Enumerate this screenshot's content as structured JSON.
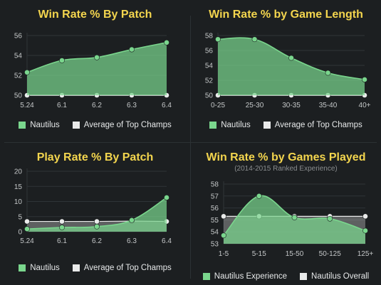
{
  "colors": {
    "background": "#1c1f21",
    "title": "#f3d54e",
    "series_primary": "#7ad68d",
    "series_secondary": "#e9eaea",
    "axis_text": "#c4c7c8",
    "grid": "#2f3438"
  },
  "chart_data": [
    {
      "type": "area",
      "title": "Win Rate % By Patch",
      "categories": [
        "5.24",
        "6.1",
        "6.2",
        "6.3",
        "6.4"
      ],
      "ylim": [
        50,
        56
      ],
      "yticks": [
        50,
        52,
        54,
        56
      ],
      "series": [
        {
          "name": "Nautilus",
          "values": [
            52.3,
            53.5,
            53.8,
            54.6,
            55.3
          ]
        },
        {
          "name": "Average of Top Champs",
          "values": [
            50,
            50,
            50,
            50,
            50
          ]
        }
      ],
      "legend": "bottom"
    },
    {
      "type": "area",
      "title": "Win Rate % by Game Length",
      "categories": [
        "0-25",
        "25-30",
        "30-35",
        "35-40",
        "40+"
      ],
      "ylim": [
        50,
        58
      ],
      "yticks": [
        50,
        52,
        54,
        56,
        58
      ],
      "series": [
        {
          "name": "Nautilus",
          "values": [
            57.5,
            57.5,
            55.0,
            53.0,
            52.1
          ]
        },
        {
          "name": "Average of Top Champs",
          "values": [
            50,
            50,
            50,
            50,
            50
          ]
        }
      ],
      "legend": "bottom"
    },
    {
      "type": "area",
      "title": "Play Rate % By Patch",
      "categories": [
        "5.24",
        "6.1",
        "6.2",
        "6.3",
        "6.4"
      ],
      "ylim": [
        0,
        20
      ],
      "yticks": [
        0,
        5,
        10,
        15,
        20
      ],
      "series": [
        {
          "name": "Nautilus",
          "values": [
            0.9,
            1.4,
            1.7,
            3.8,
            11.3
          ]
        },
        {
          "name": "Average of Top Champs",
          "values": [
            3.4,
            3.4,
            3.4,
            3.5,
            3.4
          ]
        }
      ],
      "legend": "bottom"
    },
    {
      "type": "area",
      "title": "Win Rate % by Games Played",
      "subtitle": "(2014-2015 Ranked Experience)",
      "categories": [
        "1-5",
        "5-15",
        "15-50",
        "50-125",
        "125+"
      ],
      "ylim": [
        53,
        58
      ],
      "yticks": [
        53,
        54,
        55,
        56,
        57,
        58
      ],
      "series": [
        {
          "name": "Nautilus Experience",
          "values": [
            53.7,
            57.0,
            55.2,
            55.1,
            54.1
          ]
        },
        {
          "name": "Nautilus Overall",
          "values": [
            55.3,
            55.3,
            55.3,
            55.3,
            55.3
          ]
        }
      ],
      "legend": "bottom"
    }
  ]
}
